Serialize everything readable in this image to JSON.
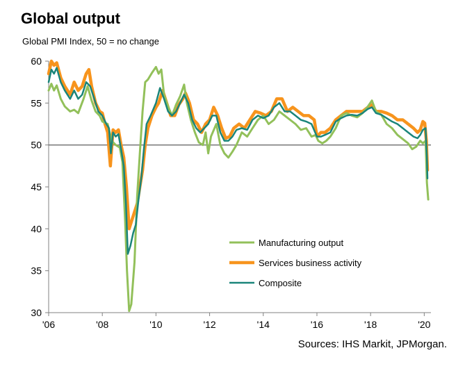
{
  "title": "Global output",
  "subtitle": "Global PMI Index, 50 = no change",
  "source": "Sources: IHS Markit, JPMorgan.",
  "colors": {
    "manufacturing": "#92c05a",
    "services": "#f7941d",
    "composite": "#1a857a",
    "axis": "#808080"
  },
  "chart_data": {
    "type": "line",
    "xlabel": "",
    "ylabel": "",
    "xlim": [
      2006.0,
      2020.25
    ],
    "ylim": [
      30,
      60
    ],
    "y_ticks": [
      30,
      35,
      40,
      45,
      50,
      55,
      60
    ],
    "x_ticks": [
      2006,
      2008,
      2010,
      2012,
      2014,
      2016,
      2018,
      2020
    ],
    "x_tick_labels": [
      "'06",
      "'08",
      "'10",
      "'12",
      "'14",
      "'16",
      "'18",
      "'20"
    ],
    "reference_line": 50,
    "legend_position": "lower-center",
    "series": [
      {
        "name": "Manufacturing output",
        "key": "manufacturing",
        "points": [
          [
            2006.0,
            56.5
          ],
          [
            2006.1,
            57.3
          ],
          [
            2006.2,
            56.5
          ],
          [
            2006.3,
            57.1
          ],
          [
            2006.45,
            55.5
          ],
          [
            2006.6,
            54.6
          ],
          [
            2006.8,
            54.0
          ],
          [
            2006.95,
            54.2
          ],
          [
            2007.1,
            53.8
          ],
          [
            2007.3,
            55.5
          ],
          [
            2007.45,
            57.0
          ],
          [
            2007.6,
            55.3
          ],
          [
            2007.75,
            54.0
          ],
          [
            2007.9,
            53.5
          ],
          [
            2008.0,
            52.8
          ],
          [
            2008.2,
            52.5
          ],
          [
            2008.35,
            50.5
          ],
          [
            2008.5,
            50.0
          ],
          [
            2008.65,
            49.7
          ],
          [
            2008.75,
            48.0
          ],
          [
            2008.85,
            41.0
          ],
          [
            2008.92,
            35.0
          ],
          [
            2009.0,
            30.2
          ],
          [
            2009.08,
            31.0
          ],
          [
            2009.2,
            36.0
          ],
          [
            2009.3,
            44.0
          ],
          [
            2009.4,
            49.0
          ],
          [
            2009.5,
            54.0
          ],
          [
            2009.6,
            57.5
          ],
          [
            2009.7,
            57.8
          ],
          [
            2009.85,
            58.6
          ],
          [
            2010.0,
            59.3
          ],
          [
            2010.1,
            58.5
          ],
          [
            2010.2,
            59.0
          ],
          [
            2010.3,
            56.0
          ],
          [
            2010.45,
            54.6
          ],
          [
            2010.6,
            53.5
          ],
          [
            2010.75,
            54.8
          ],
          [
            2010.9,
            55.8
          ],
          [
            2011.05,
            57.2
          ],
          [
            2011.15,
            55.0
          ],
          [
            2011.3,
            53.0
          ],
          [
            2011.45,
            51.5
          ],
          [
            2011.6,
            50.3
          ],
          [
            2011.75,
            50.0
          ],
          [
            2011.85,
            51.5
          ],
          [
            2011.95,
            49.0
          ],
          [
            2012.05,
            51.0
          ],
          [
            2012.25,
            52.5
          ],
          [
            2012.4,
            50.0
          ],
          [
            2012.55,
            49.0
          ],
          [
            2012.7,
            48.5
          ],
          [
            2012.85,
            49.2
          ],
          [
            2013.0,
            50.0
          ],
          [
            2013.2,
            51.5
          ],
          [
            2013.4,
            51.0
          ],
          [
            2013.6,
            52.0
          ],
          [
            2013.8,
            53.0
          ],
          [
            2014.0,
            53.5
          ],
          [
            2014.2,
            52.5
          ],
          [
            2014.4,
            53.0
          ],
          [
            2014.6,
            54.0
          ],
          [
            2014.8,
            53.5
          ],
          [
            2015.0,
            53.0
          ],
          [
            2015.2,
            52.5
          ],
          [
            2015.4,
            51.8
          ],
          [
            2015.6,
            52.0
          ],
          [
            2015.8,
            51.0
          ],
          [
            2015.95,
            51.2
          ],
          [
            2016.05,
            50.5
          ],
          [
            2016.2,
            50.2
          ],
          [
            2016.35,
            50.5
          ],
          [
            2016.5,
            51.0
          ],
          [
            2016.7,
            52.0
          ],
          [
            2016.9,
            53.5
          ],
          [
            2017.1,
            53.8
          ],
          [
            2017.3,
            53.5
          ],
          [
            2017.5,
            53.3
          ],
          [
            2017.7,
            53.8
          ],
          [
            2017.9,
            54.6
          ],
          [
            2018.05,
            55.3
          ],
          [
            2018.2,
            54.0
          ],
          [
            2018.4,
            53.6
          ],
          [
            2018.6,
            52.5
          ],
          [
            2018.8,
            52.0
          ],
          [
            2019.0,
            51.2
          ],
          [
            2019.2,
            50.7
          ],
          [
            2019.4,
            50.2
          ],
          [
            2019.55,
            49.5
          ],
          [
            2019.7,
            49.8
          ],
          [
            2019.85,
            50.5
          ],
          [
            2019.95,
            50.2
          ],
          [
            2020.05,
            50.5
          ],
          [
            2020.1,
            45.5
          ],
          [
            2020.15,
            43.5
          ]
        ]
      },
      {
        "name": "Services business activity",
        "key": "services",
        "points": [
          [
            2006.0,
            58.5
          ],
          [
            2006.1,
            60.0
          ],
          [
            2006.2,
            59.5
          ],
          [
            2006.3,
            59.8
          ],
          [
            2006.45,
            58.0
          ],
          [
            2006.6,
            57.0
          ],
          [
            2006.8,
            56.0
          ],
          [
            2006.95,
            57.5
          ],
          [
            2007.1,
            56.5
          ],
          [
            2007.25,
            57.0
          ],
          [
            2007.4,
            58.5
          ],
          [
            2007.5,
            59.0
          ],
          [
            2007.6,
            57.0
          ],
          [
            2007.75,
            55.0
          ],
          [
            2007.9,
            54.0
          ],
          [
            2008.0,
            53.8
          ],
          [
            2008.1,
            52.5
          ],
          [
            2008.2,
            51.5
          ],
          [
            2008.3,
            47.5
          ],
          [
            2008.4,
            51.8
          ],
          [
            2008.5,
            51.5
          ],
          [
            2008.6,
            51.8
          ],
          [
            2008.7,
            50.0
          ],
          [
            2008.8,
            48.5
          ],
          [
            2008.9,
            45.0
          ],
          [
            2009.0,
            40.0
          ],
          [
            2009.1,
            41.0
          ],
          [
            2009.2,
            42.0
          ],
          [
            2009.3,
            43.0
          ],
          [
            2009.4,
            45.0
          ],
          [
            2009.5,
            47.0
          ],
          [
            2009.6,
            50.0
          ],
          [
            2009.7,
            52.0
          ],
          [
            2009.85,
            53.5
          ],
          [
            2010.0,
            54.5
          ],
          [
            2010.1,
            55.0
          ],
          [
            2010.25,
            56.5
          ],
          [
            2010.4,
            55.0
          ],
          [
            2010.55,
            53.5
          ],
          [
            2010.7,
            53.5
          ],
          [
            2010.85,
            54.8
          ],
          [
            2011.0,
            55.5
          ],
          [
            2011.1,
            56.2
          ],
          [
            2011.25,
            55.0
          ],
          [
            2011.4,
            53.0
          ],
          [
            2011.55,
            52.5
          ],
          [
            2011.7,
            51.5
          ],
          [
            2011.85,
            52.5
          ],
          [
            2012.0,
            53.0
          ],
          [
            2012.15,
            54.5
          ],
          [
            2012.3,
            53.5
          ],
          [
            2012.45,
            52.0
          ],
          [
            2012.6,
            50.8
          ],
          [
            2012.75,
            51.0
          ],
          [
            2012.9,
            52.0
          ],
          [
            2013.1,
            52.5
          ],
          [
            2013.3,
            52.0
          ],
          [
            2013.5,
            53.0
          ],
          [
            2013.7,
            54.0
          ],
          [
            2013.9,
            53.8
          ],
          [
            2014.1,
            53.5
          ],
          [
            2014.3,
            54.0
          ],
          [
            2014.5,
            55.5
          ],
          [
            2014.7,
            55.5
          ],
          [
            2014.9,
            54.0
          ],
          [
            2015.1,
            54.5
          ],
          [
            2015.3,
            54.0
          ],
          [
            2015.5,
            53.5
          ],
          [
            2015.7,
            53.5
          ],
          [
            2015.9,
            53.0
          ],
          [
            2016.0,
            51.0
          ],
          [
            2016.15,
            51.5
          ],
          [
            2016.3,
            51.5
          ],
          [
            2016.5,
            52.0
          ],
          [
            2016.7,
            53.0
          ],
          [
            2016.9,
            53.5
          ],
          [
            2017.1,
            54.0
          ],
          [
            2017.3,
            54.0
          ],
          [
            2017.5,
            54.0
          ],
          [
            2017.7,
            54.0
          ],
          [
            2017.9,
            54.5
          ],
          [
            2018.05,
            54.8
          ],
          [
            2018.2,
            54.0
          ],
          [
            2018.4,
            54.0
          ],
          [
            2018.6,
            53.8
          ],
          [
            2018.8,
            53.5
          ],
          [
            2019.0,
            53.0
          ],
          [
            2019.2,
            53.0
          ],
          [
            2019.4,
            52.5
          ],
          [
            2019.6,
            52.0
          ],
          [
            2019.75,
            51.5
          ],
          [
            2019.85,
            51.8
          ],
          [
            2019.95,
            52.8
          ],
          [
            2020.02,
            52.6
          ],
          [
            2020.08,
            50.5
          ],
          [
            2020.12,
            47.0
          ]
        ]
      },
      {
        "name": "Composite",
        "key": "composite",
        "points": [
          [
            2006.0,
            57.5
          ],
          [
            2006.1,
            59.0
          ],
          [
            2006.2,
            58.5
          ],
          [
            2006.3,
            59.2
          ],
          [
            2006.45,
            57.5
          ],
          [
            2006.6,
            56.5
          ],
          [
            2006.8,
            55.5
          ],
          [
            2006.95,
            56.5
          ],
          [
            2007.1,
            55.5
          ],
          [
            2007.25,
            56.0
          ],
          [
            2007.4,
            57.5
          ],
          [
            2007.55,
            57.0
          ],
          [
            2007.7,
            55.5
          ],
          [
            2007.85,
            54.0
          ],
          [
            2008.0,
            53.5
          ],
          [
            2008.15,
            52.5
          ],
          [
            2008.25,
            52.0
          ],
          [
            2008.32,
            49.0
          ],
          [
            2008.4,
            51.5
          ],
          [
            2008.5,
            51.0
          ],
          [
            2008.6,
            51.3
          ],
          [
            2008.7,
            49.5
          ],
          [
            2008.8,
            47.5
          ],
          [
            2008.88,
            43.0
          ],
          [
            2008.95,
            37.0
          ],
          [
            2009.05,
            38.0
          ],
          [
            2009.15,
            39.5
          ],
          [
            2009.25,
            40.5
          ],
          [
            2009.35,
            43.5
          ],
          [
            2009.45,
            46.0
          ],
          [
            2009.55,
            49.5
          ],
          [
            2009.65,
            52.5
          ],
          [
            2009.8,
            53.5
          ],
          [
            2010.0,
            55.0
          ],
          [
            2010.15,
            56.8
          ],
          [
            2010.3,
            55.5
          ],
          [
            2010.45,
            54.0
          ],
          [
            2010.6,
            53.5
          ],
          [
            2010.75,
            54.0
          ],
          [
            2010.9,
            55.0
          ],
          [
            2011.05,
            56.0
          ],
          [
            2011.2,
            55.0
          ],
          [
            2011.35,
            53.0
          ],
          [
            2011.5,
            52.0
          ],
          [
            2011.65,
            51.5
          ],
          [
            2011.8,
            52.0
          ],
          [
            2011.95,
            52.5
          ],
          [
            2012.1,
            53.5
          ],
          [
            2012.25,
            53.5
          ],
          [
            2012.4,
            51.5
          ],
          [
            2012.55,
            50.5
          ],
          [
            2012.7,
            50.5
          ],
          [
            2012.85,
            51.0
          ],
          [
            2013.0,
            51.8
          ],
          [
            2013.2,
            52.0
          ],
          [
            2013.4,
            51.8
          ],
          [
            2013.6,
            53.0
          ],
          [
            2013.8,
            53.5
          ],
          [
            2014.0,
            53.2
          ],
          [
            2014.2,
            53.5
          ],
          [
            2014.4,
            54.5
          ],
          [
            2014.6,
            55.0
          ],
          [
            2014.8,
            54.0
          ],
          [
            2015.0,
            54.0
          ],
          [
            2015.2,
            53.5
          ],
          [
            2015.4,
            53.0
          ],
          [
            2015.6,
            52.8
          ],
          [
            2015.8,
            52.5
          ],
          [
            2016.0,
            51.0
          ],
          [
            2016.15,
            51.0
          ],
          [
            2016.3,
            51.2
          ],
          [
            2016.5,
            51.5
          ],
          [
            2016.7,
            52.8
          ],
          [
            2016.9,
            53.2
          ],
          [
            2017.1,
            53.5
          ],
          [
            2017.3,
            53.6
          ],
          [
            2017.5,
            53.5
          ],
          [
            2017.7,
            53.8
          ],
          [
            2017.9,
            54.3
          ],
          [
            2018.05,
            54.5
          ],
          [
            2018.2,
            53.8
          ],
          [
            2018.4,
            53.6
          ],
          [
            2018.6,
            53.2
          ],
          [
            2018.8,
            52.8
          ],
          [
            2019.0,
            52.5
          ],
          [
            2019.2,
            52.0
          ],
          [
            2019.4,
            51.5
          ],
          [
            2019.6,
            51.0
          ],
          [
            2019.75,
            50.8
          ],
          [
            2019.85,
            51.2
          ],
          [
            2019.95,
            51.8
          ],
          [
            2020.05,
            52.0
          ],
          [
            2020.1,
            48.5
          ],
          [
            2020.12,
            46.0
          ]
        ]
      }
    ]
  }
}
